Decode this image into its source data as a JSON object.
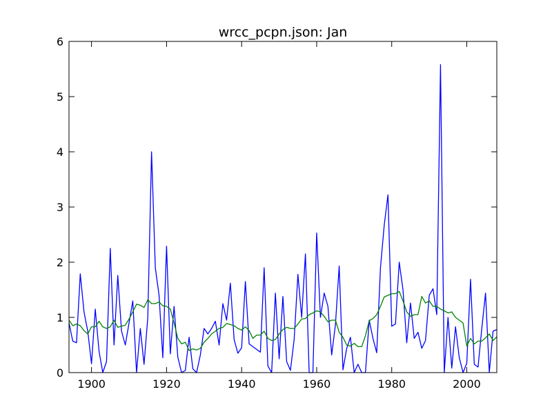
{
  "chart_data": {
    "type": "line",
    "title": "wrcc_pcpn.json: Jan",
    "xlabel": "",
    "ylabel": "",
    "xlim": [
      1894,
      2008
    ],
    "ylim": [
      0,
      6
    ],
    "xticks": [
      1900,
      1920,
      1940,
      1960,
      1980,
      2000
    ],
    "yticks": [
      0,
      1,
      2,
      3,
      4,
      5,
      6
    ],
    "grid": false,
    "x": [
      1894,
      1895,
      1896,
      1897,
      1898,
      1899,
      1900,
      1901,
      1902,
      1903,
      1904,
      1905,
      1906,
      1907,
      1908,
      1909,
      1910,
      1911,
      1912,
      1913,
      1914,
      1915,
      1916,
      1917,
      1918,
      1919,
      1920,
      1921,
      1922,
      1923,
      1924,
      1925,
      1926,
      1927,
      1928,
      1929,
      1930,
      1931,
      1932,
      1933,
      1934,
      1935,
      1936,
      1937,
      1938,
      1939,
      1940,
      1941,
      1942,
      1943,
      1944,
      1945,
      1946,
      1947,
      1948,
      1949,
      1950,
      1951,
      1952,
      1953,
      1954,
      1955,
      1956,
      1957,
      1958,
      1959,
      1960,
      1961,
      1962,
      1963,
      1964,
      1965,
      1966,
      1967,
      1968,
      1969,
      1970,
      1971,
      1972,
      1973,
      1974,
      1975,
      1976,
      1977,
      1978,
      1979,
      1980,
      1981,
      1982,
      1983,
      1984,
      1985,
      1986,
      1987,
      1988,
      1989,
      1990,
      1991,
      1992,
      1993,
      1994,
      1995,
      1996,
      1997,
      1998,
      1999,
      2000,
      2001,
      2002,
      2003,
      2004,
      2005,
      2006,
      2007,
      2008
    ],
    "series": [
      {
        "color": "#0000ff",
        "values": [
          0.9,
          0.57,
          0.54,
          1.79,
          1.1,
          0.75,
          0.16,
          1.15,
          0.39,
          0.0,
          0.2,
          2.25,
          0.5,
          1.76,
          0.75,
          0.5,
          0.9,
          1.3,
          0.0,
          0.8,
          0.15,
          1.0,
          4.0,
          1.9,
          1.4,
          0.27,
          2.29,
          0.34,
          1.2,
          0.28,
          0.0,
          0.04,
          0.64,
          0.07,
          0.0,
          0.32,
          0.8,
          0.7,
          0.8,
          0.93,
          0.5,
          1.25,
          0.95,
          1.62,
          0.6,
          0.35,
          0.45,
          1.65,
          0.52,
          0.47,
          0.42,
          0.37,
          1.9,
          0.12,
          0.0,
          1.44,
          0.25,
          1.38,
          0.2,
          0.04,
          0.6,
          1.78,
          1.0,
          2.15,
          0.0,
          0.0,
          2.53,
          1.0,
          1.44,
          1.2,
          0.32,
          0.87,
          1.93,
          0.05,
          0.44,
          0.64,
          0.0,
          0.15,
          0.0,
          0.0,
          0.95,
          0.62,
          0.36,
          1.9,
          2.67,
          3.22,
          0.84,
          0.88,
          2.0,
          1.5,
          0.54,
          1.26,
          0.62,
          0.73,
          0.44,
          0.58,
          1.4,
          1.52,
          1.05,
          5.58,
          0.0,
          1.0,
          0.08,
          0.83,
          0.27,
          0.0,
          0.17,
          1.69,
          0.15,
          0.1,
          0.8,
          1.44,
          0.0,
          0.75,
          0.78
        ]
      },
      {
        "color": "#008000",
        "values": [
          0.95,
          0.85,
          0.88,
          0.85,
          0.76,
          0.7,
          0.83,
          0.83,
          0.93,
          0.83,
          0.8,
          0.83,
          0.95,
          0.82,
          0.84,
          0.86,
          0.97,
          1.1,
          1.24,
          1.22,
          1.18,
          1.32,
          1.25,
          1.25,
          1.28,
          1.21,
          1.2,
          1.15,
          0.9,
          0.62,
          0.52,
          0.55,
          0.4,
          0.43,
          0.41,
          0.44,
          0.55,
          0.62,
          0.7,
          0.75,
          0.8,
          0.82,
          0.89,
          0.87,
          0.85,
          0.8,
          0.77,
          0.83,
          0.76,
          0.62,
          0.68,
          0.68,
          0.75,
          0.62,
          0.58,
          0.6,
          0.7,
          0.78,
          0.82,
          0.8,
          0.8,
          0.88,
          0.97,
          0.98,
          1.05,
          1.08,
          1.12,
          1.1,
          1.02,
          0.92,
          0.95,
          0.95,
          0.73,
          0.64,
          0.5,
          0.48,
          0.53,
          0.47,
          0.47,
          0.67,
          0.94,
          0.98,
          1.05,
          1.2,
          1.37,
          1.4,
          1.43,
          1.43,
          1.47,
          1.3,
          1.1,
          1.02,
          1.05,
          1.05,
          1.38,
          1.26,
          1.3,
          1.2,
          1.2,
          1.15,
          1.12,
          1.08,
          1.1,
          1.0,
          0.95,
          0.9,
          0.48,
          0.62,
          0.52,
          0.57,
          0.57,
          0.63,
          0.7,
          0.58,
          0.65
        ]
      }
    ]
  }
}
